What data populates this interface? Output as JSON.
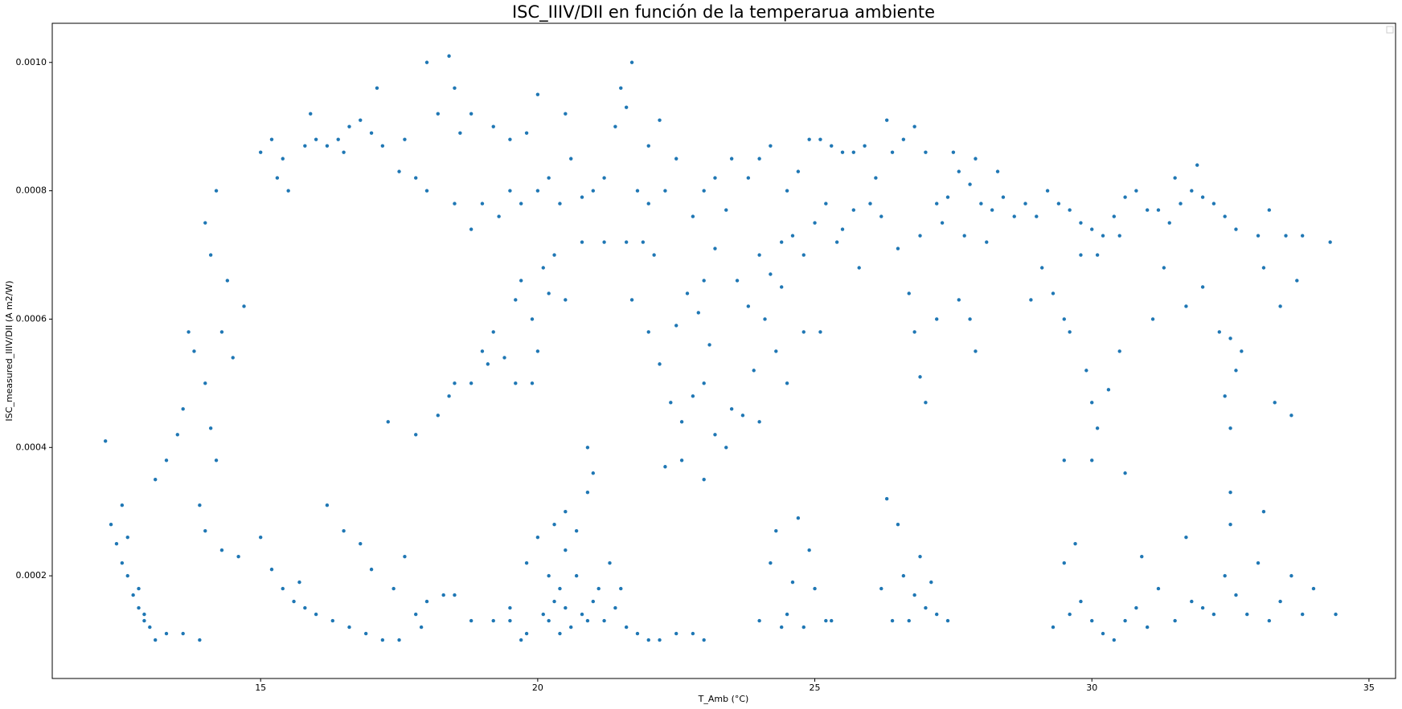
{
  "chart_data": {
    "type": "scatter",
    "title": "ISC_IIIV/DII en función de la temperarua ambiente",
    "x_label": "T_Amb (°C)",
    "y_label": "ISC_measured_IIIV/DII (A m2/W)",
    "color": "#1f77b4",
    "xlim": [
      11.24,
      35.48
    ],
    "ylim": [
      4e-05,
      0.001061
    ],
    "xticks": [
      15,
      20,
      25,
      30,
      35
    ],
    "yticks": [
      0.0002,
      0.0004,
      0.0006,
      0.0008,
      {
        "value": 0.001,
        "label": "0.0010"
      }
    ],
    "x": [
      12.2,
      12.3,
      12.4,
      12.5,
      12.6,
      12.7,
      12.8,
      12.9,
      13.0,
      13.1,
      13.3,
      13.6,
      13.9,
      12.5,
      12.6,
      12.8,
      12.9,
      13.1,
      13.3,
      13.5,
      13.6,
      13.8,
      13.7,
      14,
      14.1,
      14.2,
      13.9,
      14,
      14.3,
      14.6,
      14,
      14.1,
      14.2,
      14.4,
      14.7,
      14.5,
      14.3,
      15,
      15.2,
      15.3,
      15.5,
      15.4,
      15.8,
      16,
      16.2,
      16.4,
      16.6,
      16.8,
      17,
      17.2,
      15.9,
      16.5,
      17.5,
      17.8,
      18,
      17.6,
      18.2,
      18.5,
      18.4,
      18.0,
      18.8,
      18.6,
      17.1,
      15,
      15.2,
      15.4,
      15.6,
      15.8,
      16,
      16.3,
      16.6,
      16.9,
      17.2,
      17.5,
      16.5,
      16.8,
      17,
      17.4,
      17.8,
      18,
      18.3,
      18.5,
      18.8,
      19.2,
      19.5,
      19.8,
      16.2,
      15.7,
      17.6,
      17.9,
      17.3,
      17.8,
      18.2,
      18.5,
      18.8,
      19.0,
      19.2,
      19.4,
      19.6,
      19.9,
      18.4,
      19.1,
      19,
      19.3,
      19.5,
      19.7,
      20,
      20.2,
      20.4,
      20.6,
      19.8,
      20.0,
      20.5,
      20.8,
      21.0,
      21.2,
      21.4,
      21.5,
      21.6,
      21.8,
      22,
      22.3,
      22.5,
      22.2,
      21.7,
      20.3,
      20.1,
      19.9,
      20.2,
      20.5,
      20.8,
      21.2,
      21.6,
      21.9,
      19.6,
      20.0,
      19.7,
      18.5,
      18.8,
      19.2,
      19.5,
      23,
      22.8,
      23.2,
      22.0,
      19.8,
      20.0,
      20.1,
      20.2,
      20.3,
      20.4,
      20.5,
      20.6,
      20.7,
      20.8,
      20.9,
      21.0,
      21.2,
      21.4,
      21.6,
      21.8,
      22.0,
      22.2,
      22.5,
      22.8,
      23.0,
      20.3,
      20.5,
      20.7,
      20.9,
      20.9,
      21.0,
      20.5,
      20.2,
      21.3,
      21.1,
      21.5,
      19.5,
      19.7,
      20.4,
      21.7,
      22,
      22.2,
      22.4,
      22.6,
      22.8,
      23,
      23.2,
      23.4,
      23.5,
      22.5,
      22.9,
      23.1,
      22.1,
      22.7,
      22.3,
      23.0,
      22.6,
      23.5,
      23.8,
      24,
      24.2,
      24.5,
      24.7,
      24.9,
      25.1,
      25.3,
      25.5,
      25.7,
      25.9,
      24,
      24.2,
      24.4,
      24.6,
      24.8,
      25,
      25.2,
      25.4,
      23.8,
      24.1,
      23.6,
      23.9,
      24.3,
      24.5,
      23.7,
      24.0,
      24.8,
      25.1,
      24.4,
      23.4,
      23.2,
      23.0,
      24.0,
      24.2,
      24.3,
      24.5,
      24.6,
      24.8,
      24.9,
      25,
      25.2,
      25.3,
      24.4,
      24.7,
      26,
      26.2,
      26.4,
      26.6,
      26.8,
      27,
      27.2,
      27.4,
      27.6,
      27.8,
      28,
      28.2,
      28.4,
      28.6,
      26.5,
      26.9,
      27.3,
      27.7,
      28.1,
      25.8,
      25.5,
      26.1,
      27.5,
      27.9,
      28.3,
      26.3,
      25.7,
      26.7,
      26.8,
      26.9,
      27.0,
      27.6,
      27.8,
      27.9,
      27.2,
      26.2,
      26.3,
      26.5,
      26.6,
      26.7,
      26.8,
      26.9,
      27.0,
      27.2,
      27.4,
      26.4,
      27.1,
      28.8,
      29,
      29.2,
      29.4,
      29.6,
      29.8,
      30,
      30.2,
      30.4,
      30.6,
      30.8,
      31,
      29.1,
      29.3,
      29.5,
      29.8,
      30.1,
      30.5,
      29.6,
      29.9,
      30.0,
      30.1,
      30.0,
      30.3,
      30.5,
      30.6,
      29.5,
      28.9,
      29.3,
      29.5,
      29.6,
      29.8,
      30,
      30.2,
      30.4,
      30.6,
      30.8,
      31,
      31.2,
      29.7,
      30.9,
      31.2,
      31.4,
      31.6,
      31.8,
      32,
      32.2,
      32.4,
      32.6,
      31.5,
      31.9,
      31.3,
      31.7,
      32.0,
      32.3,
      32.5,
      32.6,
      32.4,
      32.5,
      32.7,
      33,
      33.2,
      33.5,
      33.8,
      34.3,
      33.1,
      33.4,
      33.7,
      33.3,
      33.6,
      31.1,
      31.5,
      31.8,
      32,
      32.2,
      32.4,
      32.5,
      32.6,
      32.8,
      33,
      33.2,
      33.4,
      33.6,
      33.8,
      34.0,
      34.4,
      32.5,
      33.1,
      31.7
    ],
    "values": [
      0.00041,
      0.00028,
      0.00025,
      0.00022,
      0.0002,
      0.00017,
      0.00015,
      0.00013,
      0.00012,
      0.0001,
      0.00011,
      0.00011,
      0.0001,
      0.00031,
      0.00026,
      0.00018,
      0.00014,
      0.00035,
      0.00038,
      0.00042,
      0.00046,
      0.00055,
      0.00058,
      0.0005,
      0.00043,
      0.00038,
      0.00031,
      0.00027,
      0.00024,
      0.00023,
      0.00075,
      0.0007,
      0.0008,
      0.00066,
      0.00062,
      0.00054,
      0.00058,
      0.00086,
      0.00088,
      0.00082,
      0.0008,
      0.00085,
      0.00087,
      0.00088,
      0.00087,
      0.00088,
      0.0009,
      0.00091,
      0.00089,
      0.00087,
      0.00092,
      0.00086,
      0.00083,
      0.00082,
      0.0008,
      0.00088,
      0.00092,
      0.00096,
      0.00101,
      0.001,
      0.00092,
      0.00089,
      0.00096,
      0.00026,
      0.00021,
      0.00018,
      0.00016,
      0.00015,
      0.00014,
      0.00013,
      0.00012,
      0.00011,
      0.0001,
      0.0001,
      0.00027,
      0.00025,
      0.00021,
      0.00018,
      0.00014,
      0.00016,
      0.00017,
      0.00017,
      0.00013,
      0.00013,
      0.00015,
      0.00011,
      0.00031,
      0.00019,
      0.00023,
      0.00012,
      0.00044,
      0.00042,
      0.00045,
      0.0005,
      0.0005,
      0.00055,
      0.00058,
      0.00054,
      0.0005,
      0.0005,
      0.00048,
      0.00053,
      0.00078,
      0.00076,
      0.0008,
      0.00078,
      0.0008,
      0.00082,
      0.00078,
      0.00085,
      0.00089,
      0.00095,
      0.00092,
      0.00079,
      0.0008,
      0.00082,
      0.0009,
      0.00096,
      0.00093,
      0.0008,
      0.00078,
      0.0008,
      0.00085,
      0.00091,
      0.001,
      0.0007,
      0.00068,
      0.0006,
      0.00064,
      0.00063,
      0.00072,
      0.00072,
      0.00072,
      0.00072,
      0.00063,
      0.00055,
      0.00066,
      0.00078,
      0.00074,
      0.0009,
      0.00088,
      0.0008,
      0.00076,
      0.00082,
      0.00087,
      0.00022,
      0.00026,
      0.00014,
      0.00013,
      0.00016,
      0.00018,
      0.00015,
      0.00012,
      0.0002,
      0.00014,
      0.00013,
      0.00016,
      0.00013,
      0.00015,
      0.00012,
      0.00011,
      0.0001,
      0.0001,
      0.00011,
      0.00011,
      0.0001,
      0.00028,
      0.00024,
      0.00027,
      0.00033,
      0.0004,
      0.00036,
      0.0003,
      0.0002,
      0.00022,
      0.00018,
      0.00018,
      0.00013,
      0.0001,
      0.00011,
      0.00063,
      0.00058,
      0.00053,
      0.00047,
      0.00044,
      0.00048,
      0.0005,
      0.00042,
      0.0004,
      0.00046,
      0.00059,
      0.00061,
      0.00056,
      0.0007,
      0.00064,
      0.00037,
      0.00035,
      0.00038,
      0.00085,
      0.00082,
      0.00085,
      0.00087,
      0.0008,
      0.00083,
      0.00088,
      0.00088,
      0.00087,
      0.00086,
      0.00086,
      0.00087,
      0.0007,
      0.00067,
      0.00072,
      0.00073,
      0.0007,
      0.00075,
      0.00078,
      0.00072,
      0.00062,
      0.0006,
      0.00066,
      0.00052,
      0.00055,
      0.0005,
      0.00045,
      0.00044,
      0.00058,
      0.00058,
      0.00065,
      0.00077,
      0.00071,
      0.00066,
      0.00013,
      0.00022,
      0.00027,
      0.00014,
      0.00019,
      0.00012,
      0.00024,
      0.00018,
      0.00013,
      0.00013,
      0.00012,
      0.00029,
      0.00078,
      0.00076,
      0.00086,
      0.00088,
      0.0009,
      0.00086,
      0.00078,
      0.00079,
      0.00083,
      0.00081,
      0.00078,
      0.00077,
      0.00079,
      0.00076,
      0.00071,
      0.00073,
      0.00075,
      0.00073,
      0.00072,
      0.00068,
      0.00074,
      0.00082,
      0.00086,
      0.00085,
      0.00083,
      0.00091,
      0.00077,
      0.00064,
      0.00058,
      0.00051,
      0.00047,
      0.00063,
      0.0006,
      0.00055,
      0.0006,
      0.00018,
      0.00032,
      0.00028,
      0.0002,
      0.00013,
      0.00017,
      0.00023,
      0.00015,
      0.00014,
      0.00013,
      0.00013,
      0.00019,
      0.00078,
      0.00076,
      0.0008,
      0.00078,
      0.00077,
      0.00075,
      0.00074,
      0.00073,
      0.00076,
      0.00079,
      0.0008,
      0.00077,
      0.00068,
      0.00064,
      0.0006,
      0.0007,
      0.0007,
      0.00073,
      0.00058,
      0.00052,
      0.00047,
      0.00043,
      0.00038,
      0.00049,
      0.00055,
      0.00036,
      0.00038,
      0.00063,
      0.00012,
      0.00022,
      0.00014,
      0.00016,
      0.00013,
      0.00011,
      0.0001,
      0.00013,
      0.00015,
      0.00012,
      0.00018,
      0.00025,
      0.00023,
      0.00077,
      0.00075,
      0.00078,
      0.0008,
      0.00079,
      0.00078,
      0.00076,
      0.00074,
      0.00082,
      0.00084,
      0.00068,
      0.00062,
      0.00065,
      0.00058,
      0.00057,
      0.00052,
      0.00048,
      0.00043,
      0.00055,
      0.00073,
      0.00077,
      0.00073,
      0.00073,
      0.00072,
      0.00068,
      0.00062,
      0.00066,
      0.00047,
      0.00045,
      0.0006,
      0.00013,
      0.00016,
      0.00015,
      0.00014,
      0.0002,
      0.00028,
      0.00017,
      0.00014,
      0.00022,
      0.00013,
      0.00016,
      0.0002,
      0.00014,
      0.00018,
      0.00014,
      0.00033,
      0.0003,
      0.00026
    ]
  }
}
